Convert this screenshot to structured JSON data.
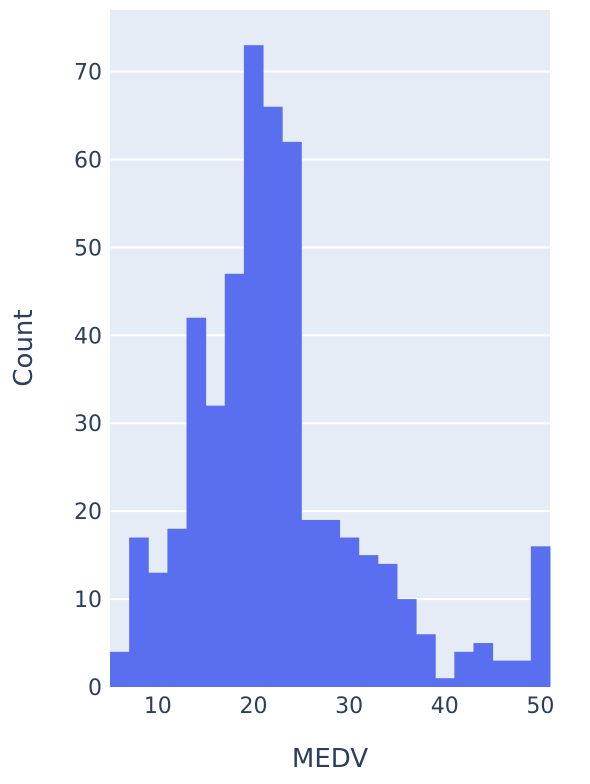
{
  "colors": {
    "plot_background": "#e5ecf6",
    "gridline": "#ffffff",
    "bar": "#5a6ff0",
    "text": "#2a3f5f"
  },
  "chart_data": {
    "type": "bar",
    "subtype": "histogram",
    "title": "",
    "xlabel": "MEDV",
    "ylabel": "Count",
    "xlim": [
      5,
      51
    ],
    "ylim": [
      0,
      77
    ],
    "bin_width": 2,
    "x_ticks": [
      10,
      20,
      30,
      40,
      50
    ],
    "y_ticks": [
      0,
      10,
      20,
      30,
      40,
      50,
      60,
      70
    ],
    "grid": true,
    "legend": "none",
    "bins": [
      {
        "start": 5,
        "end": 7,
        "count": 4
      },
      {
        "start": 7,
        "end": 9,
        "count": 17
      },
      {
        "start": 9,
        "end": 11,
        "count": 13
      },
      {
        "start": 11,
        "end": 13,
        "count": 18
      },
      {
        "start": 13,
        "end": 15,
        "count": 42
      },
      {
        "start": 15,
        "end": 17,
        "count": 32
      },
      {
        "start": 17,
        "end": 19,
        "count": 47
      },
      {
        "start": 19,
        "end": 21,
        "count": 73
      },
      {
        "start": 21,
        "end": 23,
        "count": 66
      },
      {
        "start": 23,
        "end": 25,
        "count": 62
      },
      {
        "start": 25,
        "end": 27,
        "count": 19
      },
      {
        "start": 27,
        "end": 29,
        "count": 19
      },
      {
        "start": 29,
        "end": 31,
        "count": 17
      },
      {
        "start": 31,
        "end": 33,
        "count": 15
      },
      {
        "start": 33,
        "end": 35,
        "count": 14
      },
      {
        "start": 35,
        "end": 37,
        "count": 10
      },
      {
        "start": 37,
        "end": 39,
        "count": 6
      },
      {
        "start": 39,
        "end": 41,
        "count": 1
      },
      {
        "start": 41,
        "end": 43,
        "count": 4
      },
      {
        "start": 43,
        "end": 45,
        "count": 5
      },
      {
        "start": 45,
        "end": 47,
        "count": 3
      },
      {
        "start": 47,
        "end": 49,
        "count": 3
      },
      {
        "start": 49,
        "end": 51,
        "count": 16
      }
    ]
  }
}
